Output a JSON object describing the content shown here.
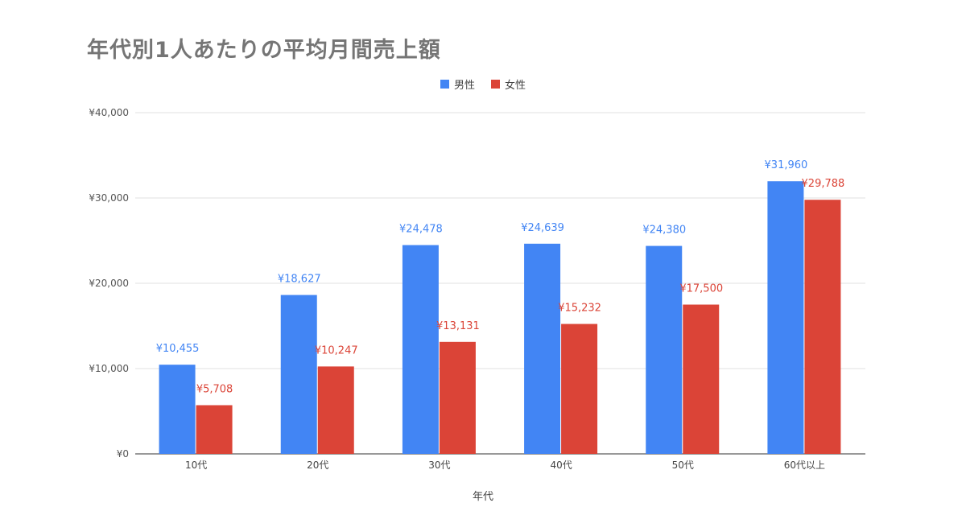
{
  "chart_data": {
    "type": "bar",
    "title": "年代別1人あたりの平均月間売上額",
    "xlabel": "年代",
    "ylabel": "",
    "categories": [
      "10代",
      "20代",
      "30代",
      "40代",
      "50代",
      "60代以上"
    ],
    "series": [
      {
        "name": "男性",
        "color": "#4285f4",
        "values": [
          10455,
          18627,
          24478,
          24639,
          24380,
          31960
        ],
        "labels": [
          "¥10,455",
          "¥18,627",
          "¥24,478",
          "¥24,639",
          "¥24,380",
          "¥31,960"
        ]
      },
      {
        "name": "女性",
        "color": "#db4437",
        "values": [
          5708,
          10247,
          13131,
          15232,
          17500,
          29788
        ],
        "labels": [
          "¥5,708",
          "¥10,247",
          "¥13,131",
          "¥15,232",
          "¥17,500",
          "¥29,788"
        ]
      }
    ],
    "ylim": [
      0,
      40000
    ],
    "yticks": [
      0,
      10000,
      20000,
      30000,
      40000
    ],
    "ytick_labels": [
      "¥0",
      "¥10,000",
      "¥20,000",
      "¥30,000",
      "¥40,000"
    ],
    "grid": true,
    "legend_position": "top-center"
  }
}
